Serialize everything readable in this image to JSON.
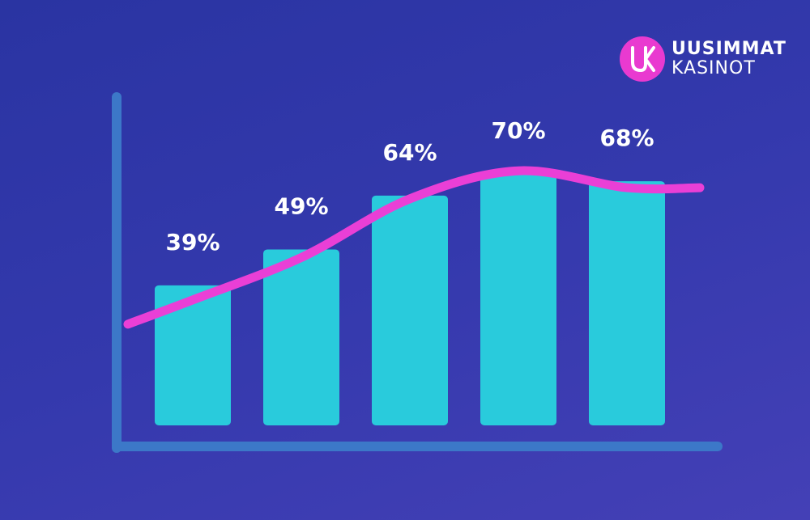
{
  "brand": {
    "line1": "UUSIMMAT",
    "line2": "KASINOT",
    "mark_text": "UK",
    "color": "#e93ad0"
  },
  "colors": {
    "bar": "#29cbdc",
    "trend": "#ea3fd6",
    "axis": "#3c78c8"
  },
  "chart_data": {
    "type": "bar",
    "categories": [
      "",
      "",
      "",
      "",
      ""
    ],
    "values": [
      39,
      49,
      64,
      70,
      68
    ],
    "data_labels": [
      "39%",
      "49%",
      "64%",
      "70%",
      "68%"
    ],
    "unit": "%",
    "ylim": [
      0,
      100
    ],
    "trend_line": true,
    "grid": false,
    "legend": "none",
    "title": "",
    "xlabel": "",
    "ylabel": ""
  }
}
